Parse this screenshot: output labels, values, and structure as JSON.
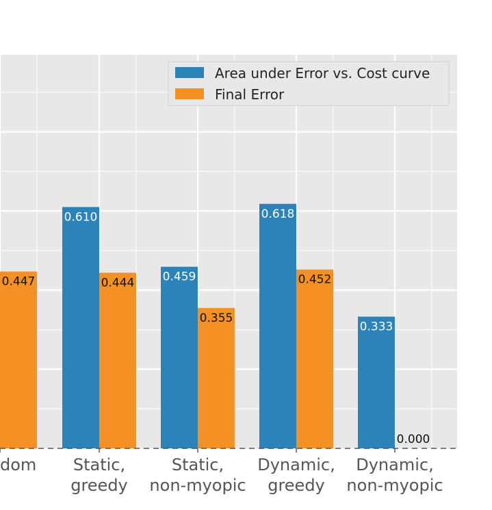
{
  "chart_data": {
    "type": "bar",
    "categories": [
      [
        "Random"
      ],
      [
        "Static,",
        "greedy"
      ],
      [
        "Static,",
        "non-myopic"
      ],
      [
        "Dynamic,",
        "greedy"
      ],
      [
        "Dynamic,",
        "non-myopic"
      ]
    ],
    "visible_category_labels": [
      [
        "dom"
      ],
      [
        "Static,",
        "greedy"
      ],
      [
        "Static,",
        "non-myopic"
      ],
      [
        "Dynamic,",
        "greedy"
      ],
      [
        "Dynamic,",
        "non-myopic"
      ]
    ],
    "series": [
      {
        "name": "Area under Error vs. Cost curve",
        "color": "#2b83ba",
        "values": [
          null,
          0.61,
          0.459,
          0.618,
          0.333
        ],
        "labels": [
          "",
          "0.610",
          "0.459",
          "0.618",
          "0.333"
        ]
      },
      {
        "name": "Final Error",
        "color": "#f59124",
        "values": [
          0.447,
          0.444,
          0.355,
          0.452,
          0.0
        ],
        "labels": [
          "0.447",
          "0.444",
          "0.355",
          "0.452",
          "0.000"
        ]
      }
    ],
    "ylim": [
      0,
      1.0
    ],
    "grid": true,
    "legend_position": "top-right",
    "background": "#e8e8e8"
  }
}
